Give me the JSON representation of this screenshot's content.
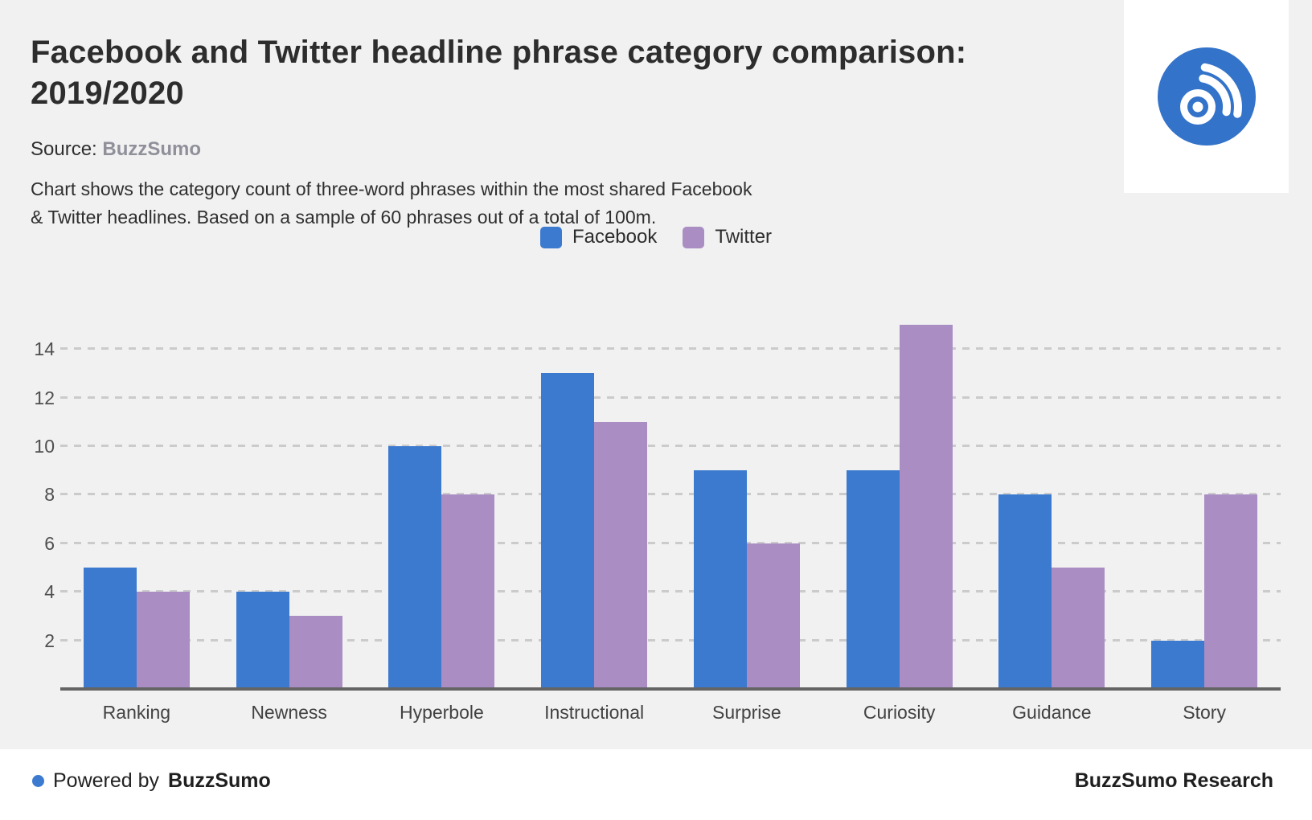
{
  "header": {
    "title": "Facebook and Twitter headline phrase category comparison:\n2019/2020",
    "source_label": "Source:",
    "source_value": "BuzzSumo",
    "description": "Chart shows the category count of three-word phrases within the most shared Facebook\n& Twitter headlines. Based on a sample of 60 phrases out of a total of 100m."
  },
  "legend": [
    {
      "label": "Facebook",
      "color": "#3c7ad0"
    },
    {
      "label": "Twitter",
      "color": "#a98dc3"
    }
  ],
  "chart_data": {
    "type": "bar",
    "title": "Facebook and Twitter headline phrase category comparison: 2019/2020",
    "xlabel": "",
    "ylabel": "",
    "categories": [
      "Ranking",
      "Newness",
      "Hyperbole",
      "Instructional",
      "Surprise",
      "Curiosity",
      "Guidance",
      "Story"
    ],
    "series": [
      {
        "name": "Facebook",
        "color": "#3c7ad0",
        "values": [
          5,
          4,
          10,
          13,
          9,
          9,
          8,
          2
        ]
      },
      {
        "name": "Twitter",
        "color": "#a98dc3",
        "values": [
          4,
          3,
          8,
          11,
          6,
          15,
          5,
          8
        ]
      }
    ],
    "yticks": [
      2,
      4,
      6,
      8,
      10,
      12,
      14
    ],
    "ylim": [
      0,
      17
    ],
    "grid": "dashed-horizontal",
    "legend_position": "top-center"
  },
  "logo": {
    "name": "buzzsumo-logo",
    "color": "#3373c9"
  },
  "footer": {
    "powered_prefix": "Powered by",
    "powered_brand": "BuzzSumo",
    "research_label": "BuzzSumo Research",
    "dot_color": "#3c7ad0"
  }
}
